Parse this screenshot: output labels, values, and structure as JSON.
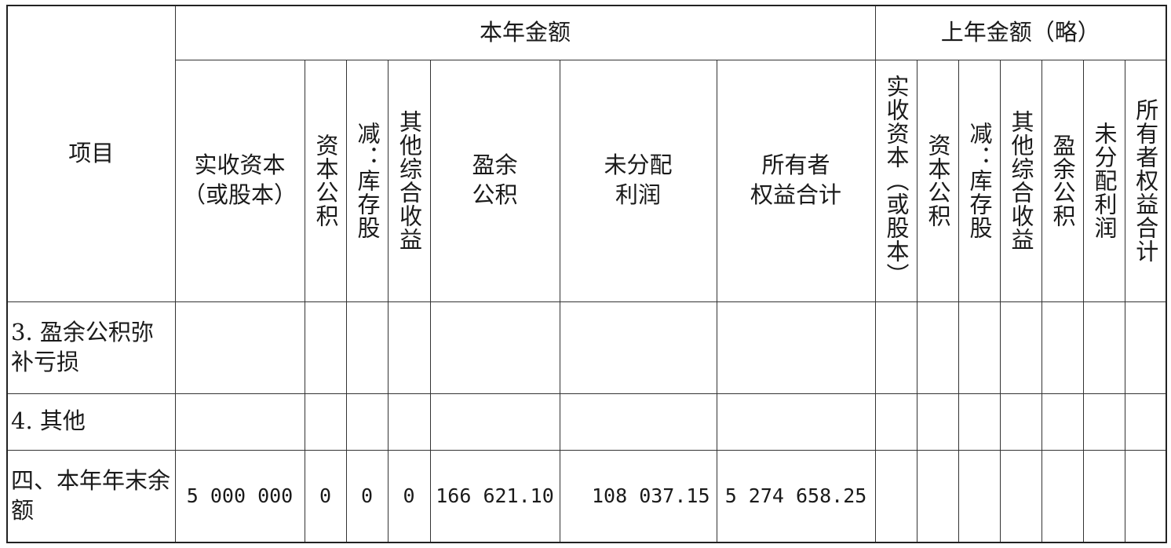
{
  "header": {
    "item": "项目",
    "current_year": "本年金额",
    "prior_year": "上年金额（略）",
    "current_columns": [
      "实收资本（或股本）",
      "资本公积",
      "减：库存股",
      "其他综合收益",
      "盈余公积",
      "未分配利润",
      "所有者权益合计"
    ],
    "current_columns_display": [
      "实收资本\n（或股本）",
      "资本公积",
      "减：库存股",
      "其他综合收益",
      "盈余\n公积",
      "未分配\n利润",
      "所有者\n权益合计"
    ],
    "prior_columns": [
      "实收资本（或股本）",
      "资本公积",
      "减：库存股",
      "其他综合收益",
      "盈余公积",
      "未分配利润",
      "所有者权益合计"
    ]
  },
  "rows": [
    {
      "label": "3. 盈余公积弥补亏损",
      "values": [
        "",
        "",
        "",
        "",
        "",
        "",
        ""
      ]
    },
    {
      "label": "4. 其他",
      "values": [
        "",
        "",
        "",
        "",
        "",
        "",
        ""
      ]
    },
    {
      "label": "四、本年年末余额",
      "values": [
        "5 000 000",
        "0",
        "0",
        "0",
        "166 621.10",
        "108 037.15",
        "5 274 658.25"
      ]
    }
  ]
}
